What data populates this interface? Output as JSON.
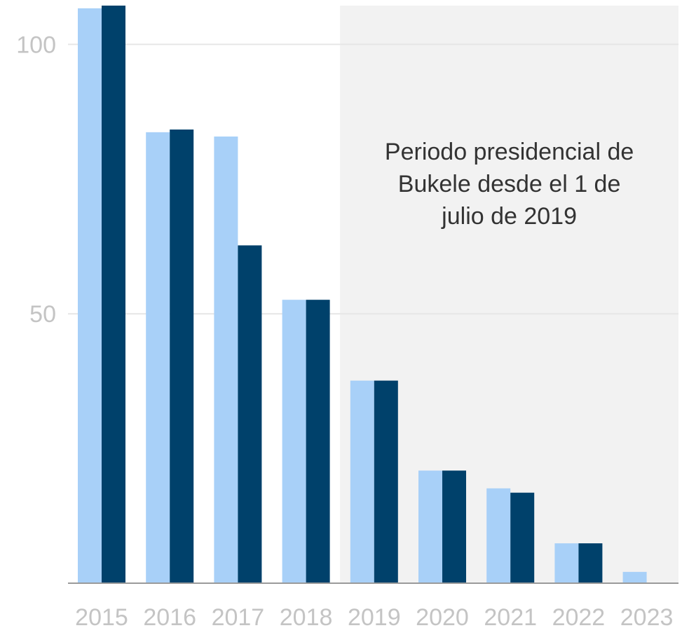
{
  "chart_data": {
    "type": "bar",
    "categories": [
      "2015",
      "2016",
      "2017",
      "2018",
      "2019",
      "2020",
      "2021",
      "2022",
      "2023"
    ],
    "series": [
      {
        "values": [
          106.7,
          83.7,
          82.9,
          52.6,
          37.6,
          20.9,
          17.6,
          7.4,
          2.1
        ],
        "color": "#a8d0f8"
      },
      {
        "values": [
          107.2,
          84.2,
          62.7,
          52.6,
          37.6,
          20.9,
          16.8,
          7.4,
          null
        ],
        "color": "#00416b"
      }
    ],
    "y_ticks": [
      50,
      100
    ],
    "ylim": [
      0,
      107.2
    ],
    "grid": true,
    "shaded_region": {
      "from_category": "2019",
      "to_category": "2023",
      "color": "#f2f2f2"
    },
    "annotation": {
      "lines": [
        "Periodo presidencial de",
        "Bukele desde el 1 de",
        "julio de 2019"
      ]
    },
    "title": "",
    "xlabel": "",
    "ylabel": ""
  }
}
